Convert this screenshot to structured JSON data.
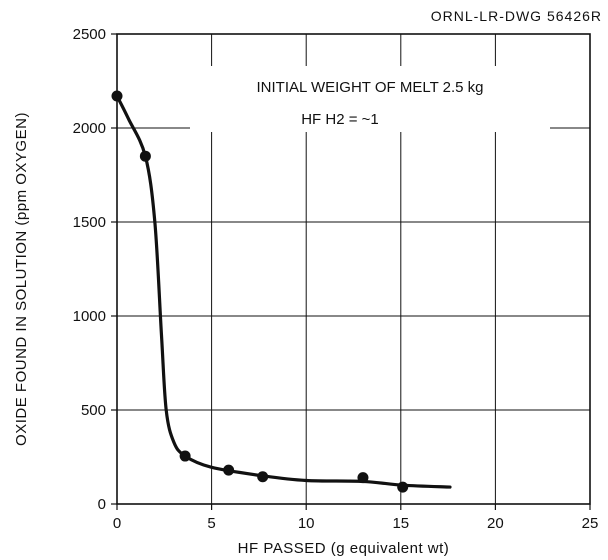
{
  "drawing_id": "ORNL-LR-DWG 56426R",
  "chart_data": {
    "type": "scatter",
    "title": "",
    "xlabel": "HF PASSED (g equivalent wt)",
    "ylabel": "OXIDE FOUND IN SOLUTION (ppm OXYGEN)",
    "xlim": [
      0,
      25
    ],
    "ylim": [
      0,
      2500
    ],
    "x_ticks": [
      0,
      5,
      10,
      15,
      20,
      25
    ],
    "y_ticks": [
      0,
      500,
      1000,
      1500,
      2000,
      2500
    ],
    "grid": true,
    "annotations": [
      "INITIAL WEIGHT OF MELT  2.5 kg",
      "HF H2 = ~1"
    ],
    "series": [
      {
        "values": [
          {
            "x": 0,
            "y": 2170
          },
          {
            "x": 1.5,
            "y": 1850
          },
          {
            "x": 3.6,
            "y": 255
          },
          {
            "x": 5.9,
            "y": 180
          },
          {
            "x": 7.7,
            "y": 145
          },
          {
            "x": 13.0,
            "y": 140
          },
          {
            "x": 15.1,
            "y": 90
          }
        ]
      }
    ],
    "fit_curve": [
      {
        "x": 0,
        "y": 2170
      },
      {
        "x": 0.6,
        "y": 2050
      },
      {
        "x": 1.5,
        "y": 1850
      },
      {
        "x": 2.0,
        "y": 1500
      },
      {
        "x": 2.35,
        "y": 900
      },
      {
        "x": 2.6,
        "y": 500
      },
      {
        "x": 3.0,
        "y": 330
      },
      {
        "x": 3.6,
        "y": 255
      },
      {
        "x": 5.0,
        "y": 195
      },
      {
        "x": 7.7,
        "y": 150
      },
      {
        "x": 10.0,
        "y": 125
      },
      {
        "x": 13.0,
        "y": 120
      },
      {
        "x": 15.1,
        "y": 100
      },
      {
        "x": 17.6,
        "y": 90
      }
    ]
  }
}
